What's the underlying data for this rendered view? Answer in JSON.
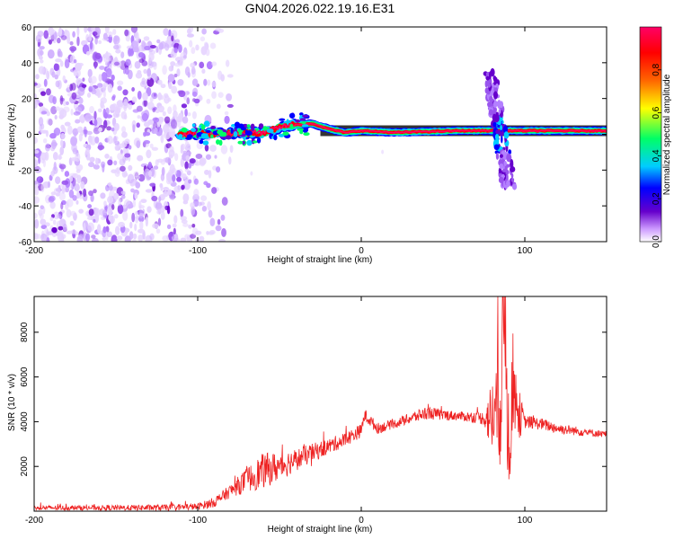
{
  "figure_title": "GN04.2026.022.19.16.E31",
  "chart_data": [
    {
      "type": "heatmap",
      "title": "GN04.2026.022.19.16.E31",
      "xlabel": "Height of straight line (km)",
      "ylabel": "Frequency (Hz)",
      "xlim": [
        -200,
        150
      ],
      "ylim": [
        -60,
        60
      ],
      "xticks": [
        -200,
        -100,
        0,
        100
      ],
      "yticks": [
        -60,
        -40,
        -20,
        0,
        20,
        40,
        60
      ],
      "colorbar": {
        "label": "Normalized spectral amplitude",
        "range": [
          0,
          1
        ],
        "ticks": [
          "0.0",
          "0.2",
          "0.4",
          "0.6",
          "0.8"
        ],
        "colormap": [
          "#ffffff",
          "#cc99ff",
          "#6600cc",
          "#0000ff",
          "#00ccff",
          "#00ff66",
          "#ffff00",
          "#ff6600",
          "#ff0000",
          "#ff0066"
        ]
      },
      "features": [
        {
          "name": "broadband noise",
          "x_range": [
            -200,
            -90
          ],
          "freq_range": [
            -60,
            60
          ],
          "amplitude": 0.15
        },
        {
          "name": "main tone",
          "x_range": [
            -112,
            150
          ],
          "freq_path": [
            [
              -112,
              0
            ],
            [
              -60,
              1
            ],
            [
              -45,
              5
            ],
            [
              -30,
              6
            ],
            [
              -20,
              3
            ],
            [
              -10,
              1
            ],
            [
              0,
              2
            ],
            [
              20,
              1
            ],
            [
              60,
              2
            ],
            [
              150,
              2
            ]
          ],
          "amplitude": 0.95
        },
        {
          "name": "spread burst",
          "x_center": 85,
          "freq_range": [
            -30,
            35
          ],
          "amplitude": 0.4
        }
      ]
    },
    {
      "type": "line",
      "xlabel": "Height of straight line (km)",
      "ylabel": "SNR (10 * v/v)",
      "xlim": [
        -200,
        150
      ],
      "ylim": [
        0,
        9600
      ],
      "xticks": [
        -200,
        -100,
        0,
        100
      ],
      "yticks": [
        2000,
        4000,
        6000,
        8000
      ],
      "color": "#ee2222",
      "series": [
        {
          "name": "SNR",
          "x": [
            -200,
            -180,
            -160,
            -140,
            -120,
            -100,
            -90,
            -80,
            -70,
            -60,
            -50,
            -40,
            -30,
            -20,
            -10,
            0,
            2,
            10,
            20,
            30,
            40,
            50,
            60,
            70,
            75,
            80,
            85,
            88,
            90,
            93,
            95,
            100,
            110,
            120,
            130,
            140,
            150
          ],
          "y": [
            150,
            150,
            150,
            150,
            160,
            200,
            400,
            900,
            1400,
            1800,
            2000,
            2300,
            2600,
            2900,
            3200,
            3600,
            4300,
            3700,
            3900,
            4150,
            4400,
            4300,
            4250,
            4200,
            4150,
            4200,
            5000,
            9400,
            3000,
            6000,
            4500,
            4000,
            3900,
            3700,
            3600,
            3500,
            3450
          ],
          "noise_envelope": {
            "x": [
              -200,
              -100,
              -80,
              -60,
              -40,
              -20,
              0,
              20,
              40,
              60,
              75,
              80,
              88,
              95,
              100,
              150
            ],
            "amplitude": [
              100,
              150,
              300,
              800,
              500,
              350,
              300,
              200,
              300,
              200,
              300,
              1800,
              3800,
              1500,
              300,
              150
            ]
          }
        }
      ]
    }
  ]
}
